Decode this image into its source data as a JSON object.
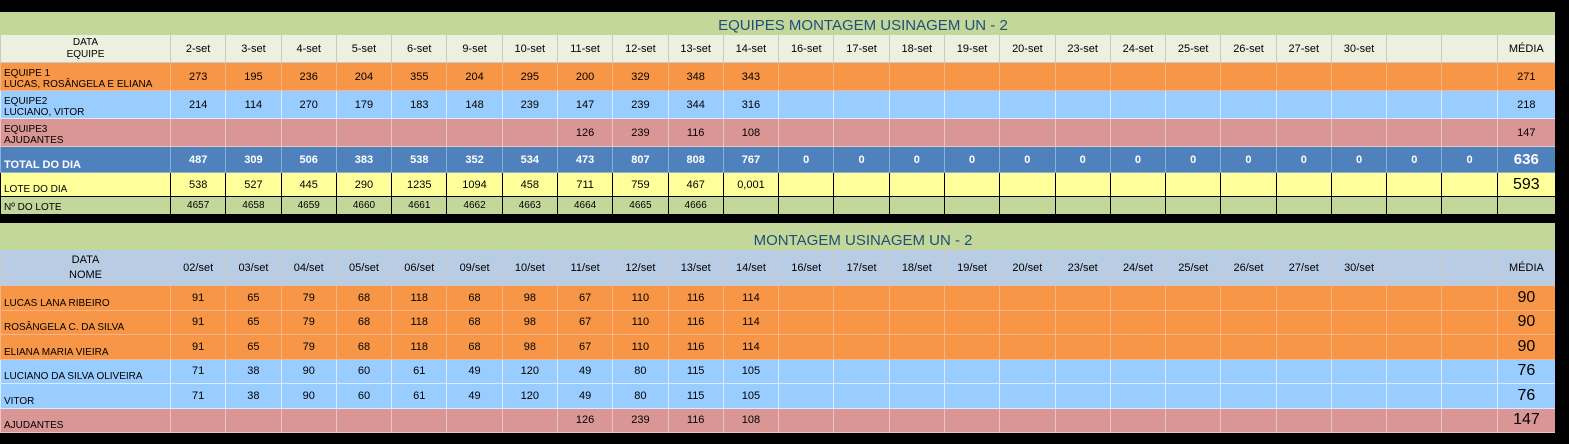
{
  "table1": {
    "title": "EQUIPES MONTAGEM USINAGEM UN - 2",
    "corner_line1": "DATA",
    "corner_line2": "EQUIPE",
    "dates": [
      "2-set",
      "3-set",
      "4-set",
      "5-set",
      "6-set",
      "9-set",
      "10-set",
      "11-set",
      "12-set",
      "13-set",
      "14-set",
      "16-set",
      "17-set",
      "18-set",
      "19-set",
      "20-set",
      "23-set",
      "24-set",
      "25-set",
      "26-set",
      "27-set",
      "30-set",
      "",
      ""
    ],
    "avg_header": "MÉDIA",
    "rows": [
      {
        "line1": "EQUIPE 1",
        "line2": "LUCAS, ROSÂNGELA E ELIANA",
        "values": [
          "273",
          "195",
          "236",
          "204",
          "355",
          "204",
          "295",
          "200",
          "329",
          "348",
          "343",
          "",
          "",
          "",
          "",
          "",
          "",
          "",
          "",
          "",
          "",
          "",
          "",
          ""
        ],
        "avg": "271"
      },
      {
        "line1": "EQUIPE2",
        "line2": "LUCIANO, VITOR",
        "values": [
          "214",
          "114",
          "270",
          "179",
          "183",
          "148",
          "239",
          "147",
          "239",
          "344",
          "316",
          "",
          "",
          "",
          "",
          "",
          "",
          "",
          "",
          "",
          "",
          "",
          "",
          ""
        ],
        "avg": "218"
      },
      {
        "line1": "EQUIPE3",
        "line2": "AJUDANTES",
        "values": [
          "",
          "",
          "",
          "",
          "",
          "",
          "",
          "126",
          "239",
          "116",
          "108",
          "",
          "",
          "",
          "",
          "",
          "",
          "",
          "",
          "",
          "",
          "",
          "",
          ""
        ],
        "avg": "147"
      }
    ],
    "total": {
      "label": "TOTAL DO DIA",
      "values": [
        "487",
        "309",
        "506",
        "383",
        "538",
        "352",
        "534",
        "473",
        "807",
        "808",
        "767",
        "0",
        "0",
        "0",
        "0",
        "0",
        "0",
        "0",
        "0",
        "0",
        "0",
        "0",
        "0",
        "0"
      ],
      "avg": "636"
    },
    "lote": {
      "label": "LOTE DO DIA",
      "values": [
        "538",
        "527",
        "445",
        "290",
        "1235",
        "1094",
        "458",
        "711",
        "759",
        "467",
        "0,001",
        "",
        "",
        "",
        "",
        "",
        "",
        "",
        "",
        "",
        "",
        "",
        "",
        ""
      ],
      "avg": "593"
    },
    "numlote": {
      "label": "Nº DO LOTE",
      "values": [
        "4657",
        "4658",
        "4659",
        "4660",
        "4661",
        "4662",
        "4663",
        "4664",
        "4665",
        "4666",
        "",
        "",
        "",
        "",
        "",
        "",
        "",
        "",
        "",
        "",
        "",
        "",
        "",
        ""
      ],
      "avg": ""
    }
  },
  "table2": {
    "title": "MONTAGEM USINAGEM UN - 2",
    "corner_line1": "DATA",
    "corner_line2": "NOME",
    "dates": [
      "02/set",
      "03/set",
      "04/set",
      "05/set",
      "06/set",
      "09/set",
      "10/set",
      "11/set",
      "12/set",
      "13/set",
      "14/set",
      "16/set",
      "17/set",
      "18/set",
      "19/set",
      "20/set",
      "23/set",
      "24/set",
      "25/set",
      "26/set",
      "27/set",
      "30/set",
      "",
      ""
    ],
    "avg_header": "MÉDIA",
    "rows": [
      {
        "name": "LUCAS LANA RIBEIRO",
        "color": "orange",
        "values": [
          "91",
          "65",
          "79",
          "68",
          "118",
          "68",
          "98",
          "67",
          "110",
          "116",
          "114",
          "",
          "",
          "",
          "",
          "",
          "",
          "",
          "",
          "",
          "",
          "",
          "",
          ""
        ],
        "avg": "90"
      },
      {
        "name": "ROSÂNGELA C. DA SILVA",
        "color": "orange",
        "values": [
          "91",
          "65",
          "79",
          "68",
          "118",
          "68",
          "98",
          "67",
          "110",
          "116",
          "114",
          "",
          "",
          "",
          "",
          "",
          "",
          "",
          "",
          "",
          "",
          "",
          "",
          ""
        ],
        "avg": "90"
      },
      {
        "name": "ELIANA MARIA VIEIRA",
        "color": "orange",
        "values": [
          "91",
          "65",
          "79",
          "68",
          "118",
          "68",
          "98",
          "67",
          "110",
          "116",
          "114",
          "",
          "",
          "",
          "",
          "",
          "",
          "",
          "",
          "",
          "",
          "",
          "",
          ""
        ],
        "avg": "90"
      },
      {
        "name": "LUCIANO DA SILVA OLIVEIRA",
        "color": "blue",
        "values": [
          "71",
          "38",
          "90",
          "60",
          "61",
          "49",
          "120",
          "49",
          "80",
          "115",
          "105",
          "",
          "",
          "",
          "",
          "",
          "",
          "",
          "",
          "",
          "",
          "",
          "",
          ""
        ],
        "avg": "76"
      },
      {
        "name": "VITOR",
        "color": "blue",
        "values": [
          "71",
          "38",
          "90",
          "60",
          "61",
          "49",
          "120",
          "49",
          "80",
          "115",
          "105",
          "",
          "",
          "",
          "",
          "",
          "",
          "",
          "",
          "",
          "",
          "",
          "",
          ""
        ],
        "avg": "76"
      },
      {
        "name": "AJUDANTES",
        "color": "pink",
        "values": [
          "",
          "",
          "",
          "",
          "",
          "",
          "",
          "126",
          "239",
          "116",
          "108",
          "",
          "",
          "",
          "",
          "",
          "",
          "",
          "",
          "",
          "",
          "",
          "",
          ""
        ],
        "avg": "147"
      }
    ]
  },
  "colors": {
    "orange": "#f79646",
    "blue": "#99ccff",
    "pink": "#da9694",
    "total": "#4f81bd",
    "yellow": "#ffff99",
    "green": "#c4d79b",
    "title": "#1f4e79"
  }
}
